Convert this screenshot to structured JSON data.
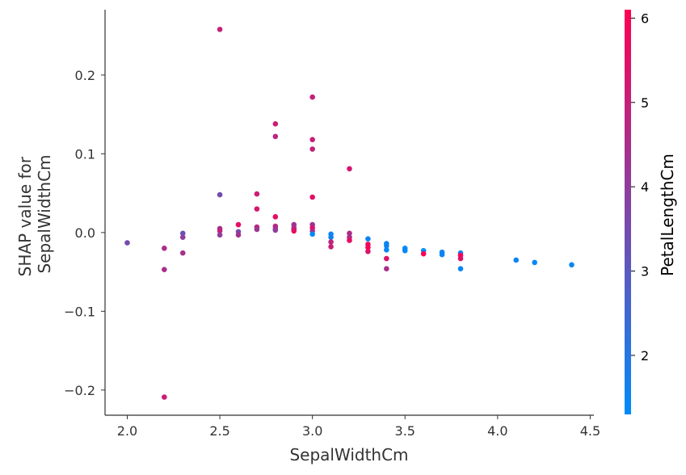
{
  "chart_data": {
    "type": "scatter",
    "title": "",
    "xlabel": "SepalWidthCm",
    "ylabel_lines": [
      "SHAP value for",
      "SepalWidthCm"
    ],
    "xlim": [
      1.88,
      4.52
    ],
    "ylim": [
      -0.232,
      0.283
    ],
    "x_ticks": [
      2.0,
      2.5,
      3.0,
      3.5,
      4.0,
      4.5
    ],
    "x_tick_labels": [
      "2.0",
      "2.5",
      "3.0",
      "3.5",
      "4.0",
      "4.5"
    ],
    "y_ticks": [
      0.2,
      0.1,
      0.0,
      -0.1,
      -0.2
    ],
    "y_tick_labels": [
      "0.2",
      "0.1",
      "0.0",
      "−0.1",
      "−0.2"
    ],
    "grid": false,
    "colorbar": {
      "label": "PetalLengthCm",
      "range": [
        1.3,
        6.1
      ],
      "ticks": [
        2,
        3,
        4,
        5,
        6
      ],
      "tick_labels": [
        "2",
        "3",
        "4",
        "5",
        "6"
      ],
      "colors": [
        "#008bfb",
        "#ff0052"
      ]
    },
    "points": [
      [
        2.0,
        -0.013,
        3.5
      ],
      [
        2.2,
        -0.02,
        4.5
      ],
      [
        2.2,
        -0.047,
        4.5
      ],
      [
        2.2,
        -0.209,
        5.0
      ],
      [
        2.3,
        -0.001,
        3.3
      ],
      [
        2.3,
        -0.006,
        4.0
      ],
      [
        2.3,
        -0.026,
        4.4
      ],
      [
        2.5,
        0.258,
        5.0
      ],
      [
        2.5,
        0.048,
        3.5
      ],
      [
        2.5,
        0.005,
        4.5
      ],
      [
        2.5,
        0.002,
        4.9
      ],
      [
        2.5,
        -0.003,
        4.0
      ],
      [
        2.6,
        0.01,
        5.6
      ],
      [
        2.6,
        0.001,
        3.5
      ],
      [
        2.6,
        -0.003,
        4.4
      ],
      [
        2.7,
        0.049,
        5.1
      ],
      [
        2.7,
        0.03,
        5.3
      ],
      [
        2.7,
        0.007,
        4.9
      ],
      [
        2.7,
        0.004,
        4.2
      ],
      [
        2.8,
        0.138,
        5.1
      ],
      [
        2.8,
        0.122,
        4.8
      ],
      [
        2.8,
        0.02,
        5.6
      ],
      [
        2.8,
        0.008,
        4.7
      ],
      [
        2.8,
        0.005,
        4.6
      ],
      [
        2.8,
        0.003,
        4.0
      ],
      [
        2.9,
        0.01,
        4.3
      ],
      [
        2.9,
        0.006,
        4.5
      ],
      [
        2.9,
        0.004,
        4.7
      ],
      [
        2.9,
        0.002,
        5.6
      ],
      [
        3.0,
        0.172,
        5.0
      ],
      [
        3.0,
        0.118,
        5.1
      ],
      [
        3.0,
        0.106,
        4.9
      ],
      [
        3.0,
        0.045,
        5.6
      ],
      [
        3.0,
        0.01,
        4.2
      ],
      [
        3.0,
        0.006,
        5.5
      ],
      [
        3.0,
        0.002,
        4.6
      ],
      [
        3.0,
        -0.002,
        1.4
      ],
      [
        3.1,
        -0.002,
        1.5
      ],
      [
        3.1,
        -0.006,
        1.6
      ],
      [
        3.1,
        -0.012,
        4.8
      ],
      [
        3.1,
        -0.018,
        5.1
      ],
      [
        3.2,
        0.081,
        5.3
      ],
      [
        3.2,
        -0.001,
        4.6
      ],
      [
        3.2,
        -0.006,
        4.5
      ],
      [
        3.2,
        -0.01,
        5.7
      ],
      [
        3.3,
        -0.008,
        1.5
      ],
      [
        3.3,
        -0.015,
        5.7
      ],
      [
        3.3,
        -0.019,
        6.0
      ],
      [
        3.3,
        -0.024,
        5.4
      ],
      [
        3.4,
        -0.014,
        1.5
      ],
      [
        3.4,
        -0.017,
        1.6
      ],
      [
        3.4,
        -0.022,
        1.4
      ],
      [
        3.4,
        -0.033,
        5.4
      ],
      [
        3.4,
        -0.046,
        4.5
      ],
      [
        3.5,
        -0.02,
        1.3
      ],
      [
        3.5,
        -0.023,
        1.4
      ],
      [
        3.6,
        -0.023,
        1.4
      ],
      [
        3.6,
        -0.027,
        6.1
      ],
      [
        3.7,
        -0.025,
        1.5
      ],
      [
        3.7,
        -0.028,
        1.5
      ],
      [
        3.8,
        -0.026,
        1.6
      ],
      [
        3.8,
        -0.029,
        6.0
      ],
      [
        3.8,
        -0.033,
        5.5
      ],
      [
        3.8,
        -0.046,
        1.5
      ],
      [
        4.1,
        -0.035,
        1.5
      ],
      [
        4.2,
        -0.038,
        1.4
      ],
      [
        4.4,
        -0.041,
        1.5
      ]
    ]
  }
}
